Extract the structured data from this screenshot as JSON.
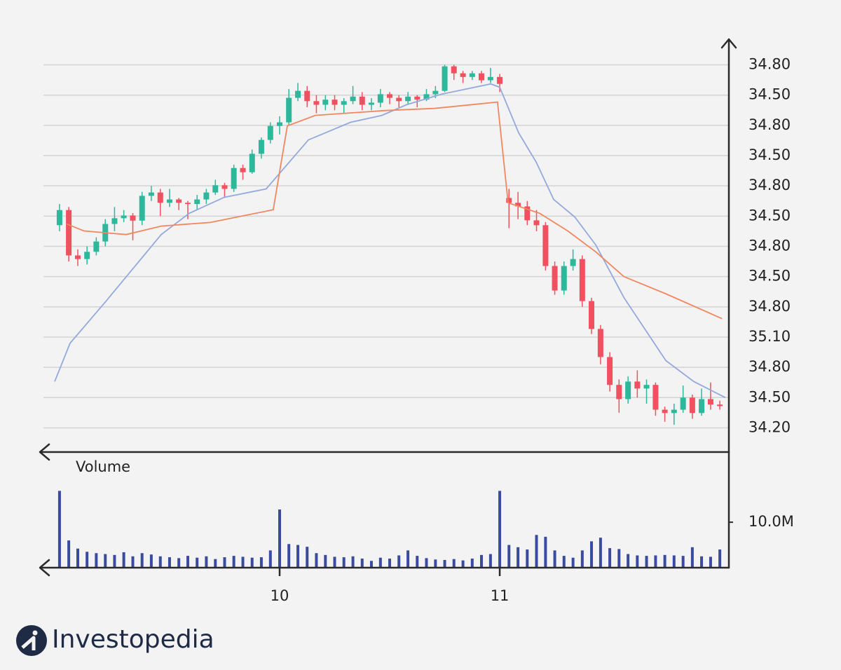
{
  "chart_data": [
    {
      "type": "candlestick",
      "x": [
        9,
        9.042,
        9.083,
        9.125,
        9.167,
        9.208,
        9.25,
        9.292,
        9.333,
        9.375,
        9.417,
        9.458,
        9.5,
        9.542,
        9.583,
        9.625,
        9.667,
        9.708,
        9.75,
        9.792,
        9.833,
        9.875,
        9.917,
        9.958,
        10,
        10.042,
        10.083,
        10.125,
        10.167,
        10.208,
        10.25,
        10.292,
        10.333,
        10.375,
        10.417,
        10.458,
        10.5,
        10.542,
        10.583,
        10.625,
        10.667,
        10.708,
        10.75,
        10.792,
        10.833,
        10.875,
        10.917,
        10.958,
        11,
        11.042,
        11.083,
        11.125,
        11.167,
        11.208,
        11.25,
        11.292,
        11.333,
        11.375,
        11.417,
        11.458,
        11.5,
        11.542,
        11.583,
        11.625,
        11.667,
        11.708,
        11.75,
        11.792,
        11.833,
        11.875,
        11.917,
        11.958,
        12
      ],
      "open": [
        7.7,
        8.2,
        6.7,
        6.58,
        6.82,
        7.16,
        7.74,
        7.93,
        8.02,
        7.85,
        8.67,
        8.78,
        8.44,
        8.55,
        8.44,
        8.4,
        8.55,
        8.78,
        9.02,
        8.9,
        9.59,
        9.45,
        10.06,
        10.52,
        10.98,
        11.1,
        11.91,
        12.14,
        11.8,
        11.68,
        11.85,
        11.68,
        11.8,
        11.95,
        11.68,
        11.75,
        12.03,
        11.91,
        11.8,
        11.95,
        11.85,
        12.03,
        12.14,
        12.95,
        12.72,
        12.6,
        12.72,
        12.49,
        12.6,
        8.6,
        8.44,
        8.32,
        7.86,
        7.7,
        6.35,
        5.54,
        6.35,
        6.58,
        5.19,
        4.27,
        3.34,
        2.42,
        1.95,
        2.53,
        2.3,
        2.42,
        1.6,
        1.49,
        1.6,
        2,
        1.49,
        1.95,
        1.77
      ],
      "high": [
        8.4,
        8.3,
        6.9,
        7,
        7.3,
        7.9,
        8.3,
        8.2,
        8.1,
        8.8,
        9,
        8.9,
        8.9,
        8.6,
        8.5,
        8.7,
        8.9,
        9.2,
        9.1,
        9.7,
        9.7,
        10.2,
        10.6,
        11.1,
        11.3,
        12.2,
        12.4,
        12.3,
        12,
        12,
        12,
        11.9,
        12.3,
        12.1,
        11.9,
        12.2,
        12.1,
        12,
        12.1,
        12,
        12.2,
        12.3,
        13,
        13,
        12.8,
        12.8,
        12.8,
        12.9,
        12.7,
        8.9,
        8.8,
        8.5,
        8.2,
        7.8,
        6.5,
        6.5,
        6.9,
        6.7,
        5.3,
        4.4,
        3.5,
        2.6,
        2.7,
        2.9,
        2.6,
        2.5,
        1.7,
        1.8,
        2.4,
        2.1,
        2.3,
        2.5,
        1.9
      ],
      "low": [
        7.5,
        6.5,
        6.35,
        6.4,
        6.7,
        7,
        7.5,
        7.8,
        7.2,
        7.7,
        8.5,
        8,
        8.3,
        8.2,
        7.9,
        8.2,
        8.4,
        8.7,
        8.6,
        8.8,
        9.2,
        9.4,
        9.9,
        10.4,
        10.7,
        11,
        11.8,
        11.6,
        11.4,
        11.5,
        11.5,
        11.4,
        11.7,
        11.5,
        11.5,
        11.6,
        11.7,
        11.6,
        11.7,
        11.6,
        11.8,
        11.9,
        12.1,
        12.5,
        12.4,
        12.5,
        12.4,
        12.4,
        12.1,
        7.6,
        7.9,
        7.7,
        7.5,
        6.2,
        5.4,
        5.4,
        6.2,
        5,
        4.1,
        3.1,
        2.2,
        1.5,
        1.8,
        2,
        1.8,
        1.4,
        1.2,
        1.1,
        1.5,
        1.3,
        1.4,
        1.6,
        1.6
      ],
      "close": [
        8.2,
        6.7,
        6.58,
        6.82,
        7.16,
        7.74,
        7.93,
        8.02,
        7.85,
        8.67,
        8.78,
        8.44,
        8.55,
        8.44,
        8.4,
        8.55,
        8.78,
        9.02,
        8.9,
        9.59,
        9.45,
        10.06,
        10.52,
        10.98,
        11.1,
        11.91,
        12.14,
        11.8,
        11.68,
        11.85,
        11.68,
        11.8,
        11.95,
        11.68,
        11.75,
        12.03,
        11.91,
        11.8,
        11.95,
        11.85,
        12.03,
        12.14,
        12.95,
        12.72,
        12.6,
        12.72,
        12.49,
        12.6,
        12.37,
        8.44,
        8.32,
        7.86,
        7.7,
        6.35,
        5.54,
        6.35,
        6.58,
        5.19,
        4.27,
        3.34,
        2.42,
        1.95,
        2.53,
        2.3,
        2.42,
        1.6,
        1.49,
        1.6,
        2,
        1.49,
        1.95,
        1.77,
        1.72
      ],
      "up_color": "#2db89b",
      "down_color": "#f0505f",
      "lines": [
        {
          "color": "#93a9dc",
          "x": [
            8.978,
            9.048,
            9.207,
            9.462,
            9.589,
            9.748,
            9.939,
            10.131,
            10.322,
            10.465,
            10.576,
            10.736,
            10.959,
            11,
            11.086,
            11.166,
            11.245,
            11.341,
            11.436,
            11.564,
            11.659,
            11.755,
            11.882,
            12.025
          ],
          "values": [
            2.53,
            3.8,
            5.15,
            7.39,
            8.09,
            8.62,
            8.9,
            10.52,
            11.1,
            11.33,
            11.68,
            12.03,
            12.37,
            12.26,
            10.75,
            9.78,
            8.55,
            7.97,
            7.05,
            5.31,
            4.27,
            3.22,
            2.53,
            2
          ]
        },
        {
          "color": "#f0875f",
          "x": [
            9.032,
            9.111,
            9.303,
            9.462,
            9.685,
            9.971,
            10.035,
            10.162,
            10.481,
            10.704,
            10.99,
            11.038,
            11.182,
            11.309,
            11.436,
            11.564,
            11.755,
            12.01
          ],
          "values": [
            7.74,
            7.51,
            7.39,
            7.67,
            7.79,
            8.21,
            10.98,
            11.33,
            11.49,
            11.56,
            11.77,
            8.44,
            8.09,
            7.51,
            6.82,
            6,
            5.43,
            4.61
          ]
        }
      ],
      "xlim": [
        8.927,
        12.041
      ],
      "ylim": [
        0.2,
        13.8
      ],
      "yticks": [
        1,
        2,
        3,
        4,
        5,
        6,
        7,
        8,
        9,
        10,
        11,
        12,
        13
      ],
      "y_labels": [
        "34.20",
        "34.50",
        "34.80",
        "35.10",
        "34.80",
        "34.50",
        "34.80",
        "34.50",
        "34.80",
        "34.50",
        "34.80",
        "34.50",
        "34.80"
      ],
      "grid": true
    },
    {
      "type": "bar",
      "title": "Volume",
      "x": [
        9,
        9.042,
        9.083,
        9.125,
        9.167,
        9.208,
        9.25,
        9.292,
        9.333,
        9.375,
        9.417,
        9.458,
        9.5,
        9.542,
        9.583,
        9.625,
        9.667,
        9.708,
        9.75,
        9.792,
        9.833,
        9.875,
        9.917,
        9.958,
        10,
        10.042,
        10.083,
        10.125,
        10.167,
        10.208,
        10.25,
        10.292,
        10.333,
        10.375,
        10.417,
        10.458,
        10.5,
        10.542,
        10.583,
        10.625,
        10.667,
        10.708,
        10.75,
        10.792,
        10.833,
        10.875,
        10.917,
        10.958,
        11,
        11.042,
        11.083,
        11.125,
        11.167,
        11.208,
        11.25,
        11.292,
        11.333,
        11.375,
        11.417,
        11.458,
        11.5,
        11.542,
        11.583,
        11.625,
        11.667,
        11.708,
        11.75,
        11.792,
        11.833,
        11.875,
        11.917,
        11.958,
        12
      ],
      "values": [
        16900000,
        6000000,
        4200000,
        3500000,
        3200000,
        3000000,
        2800000,
        3400000,
        2500000,
        3200000,
        2900000,
        2500000,
        2300000,
        2100000,
        2600000,
        2200000,
        2500000,
        1900000,
        2300000,
        2600000,
        2400000,
        2200000,
        2300000,
        3800000,
        12800000,
        5200000,
        5000000,
        4600000,
        3200000,
        2800000,
        2400000,
        2300000,
        2500000,
        2000000,
        1500000,
        2200000,
        2000000,
        2700000,
        3800000,
        2600000,
        2100000,
        1800000,
        1700000,
        1900000,
        1600000,
        2000000,
        2800000,
        3000000,
        16900000,
        5000000,
        4500000,
        4000000,
        7200000,
        6800000,
        3800000,
        2600000,
        2200000,
        3800000,
        5800000,
        6600000,
        4300000,
        4100000,
        3000000,
        2700000,
        2600000,
        2700000,
        2800000,
        2700000,
        2600000,
        4500000,
        2500000,
        2400000,
        4000000
      ],
      "color": "#3a4a9f",
      "xlim": [
        8.927,
        12.041
      ],
      "xticks": [
        10,
        11
      ],
      "ylim": [
        0,
        18500000
      ],
      "yticks": [
        {
          "value": 10000000,
          "label": "10.0M"
        }
      ],
      "grid": false
    }
  ],
  "brand": "Investopedia"
}
